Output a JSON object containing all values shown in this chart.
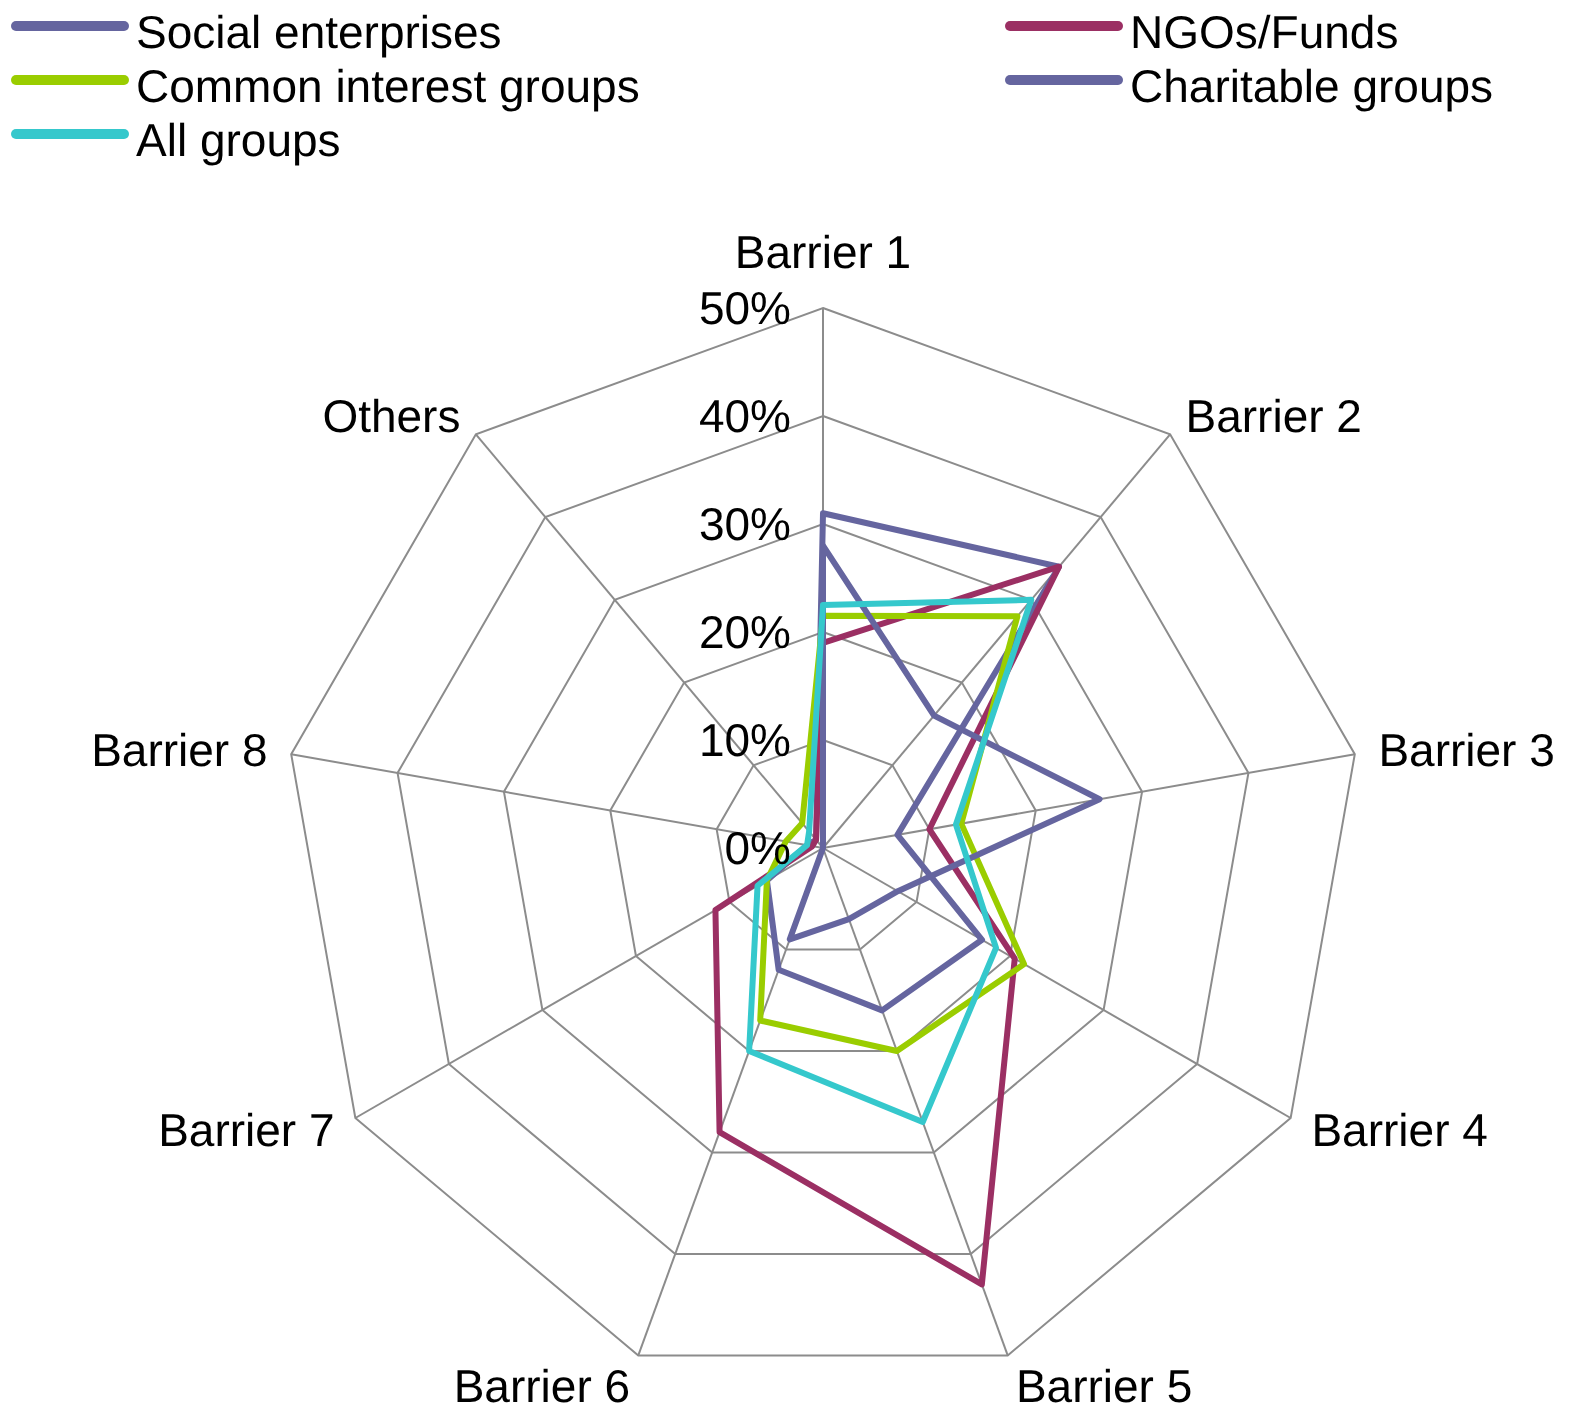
{
  "chart_data": {
    "type": "radar",
    "categories": [
      "Barrier 1",
      "Barrier 2",
      "Barrier 3",
      "Barrier 4",
      "Barrier 5",
      "Barrier 6",
      "Barrier 7",
      "Barrier 8",
      "Others"
    ],
    "ylim": [
      0,
      50
    ],
    "yticks": [
      {
        "value": 0,
        "label": "0%"
      },
      {
        "value": 10,
        "label": "10%"
      },
      {
        "value": 20,
        "label": "20%"
      },
      {
        "value": 30,
        "label": "30%"
      },
      {
        "value": 40,
        "label": "40%"
      },
      {
        "value": 50,
        "label": "50%"
      }
    ],
    "grid": true,
    "legend": "top",
    "series": [
      {
        "name": "Social enterprises",
        "color": "#65659f",
        "values": [
          31,
          34,
          7,
          17,
          16,
          12,
          6,
          1.5,
          1
        ]
      },
      {
        "name": "NGOs/Funds",
        "color": "#9b2f63",
        "values": [
          19,
          34,
          10,
          20.5,
          43,
          28,
          11.5,
          1,
          1
        ]
      },
      {
        "name": "Common interest groups",
        "color": "#9acd00",
        "values": [
          21.5,
          28,
          13,
          21.5,
          20,
          17,
          6,
          3.5,
          3
        ]
      },
      {
        "name": "Charitable groups",
        "color": "#65659f",
        "values": [
          28,
          16,
          26,
          8,
          7,
          9,
          0,
          0,
          0
        ]
      },
      {
        "name": "All groups",
        "color": "#35c8cc",
        "values": [
          22.5,
          30,
          12.5,
          18.5,
          27,
          20,
          7,
          1.5,
          2
        ]
      }
    ]
  }
}
